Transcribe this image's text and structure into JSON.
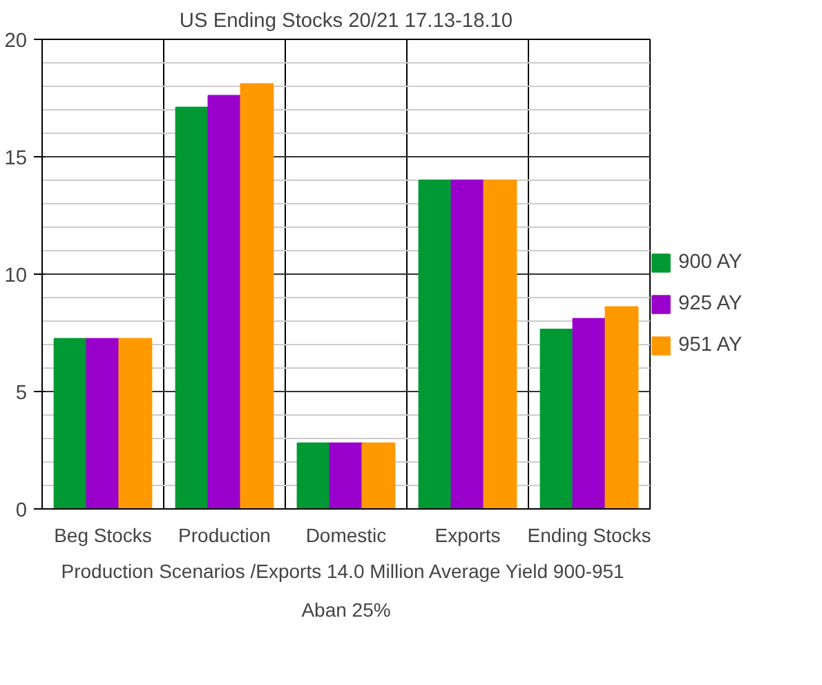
{
  "chart_data": {
    "type": "bar",
    "title": "US Ending Stocks 20/21 17.13-18.10",
    "categories": [
      "Beg Stocks",
      "Production",
      "Domestic",
      "Exports",
      "Ending Stocks"
    ],
    "series": [
      {
        "name": "900 AY",
        "color": "#009933",
        "values": [
          7.25,
          17.1,
          2.8,
          14.0,
          7.65
        ]
      },
      {
        "name": "925 AY",
        "color": "#9900cc",
        "values": [
          7.25,
          17.6,
          2.8,
          14.0,
          8.1
        ]
      },
      {
        "name": "951 AY",
        "color": "#ff9900",
        "values": [
          7.25,
          18.1,
          2.8,
          14.0,
          8.6
        ]
      }
    ],
    "ylim": [
      0,
      20
    ],
    "yticks": [
      0,
      5,
      10,
      15,
      20
    ],
    "grid": true,
    "legend": "right",
    "annotations": [
      "Production Scenarios /Exports 14.0 Million  Average Yield 900-951",
      "Aban 25%"
    ]
  }
}
